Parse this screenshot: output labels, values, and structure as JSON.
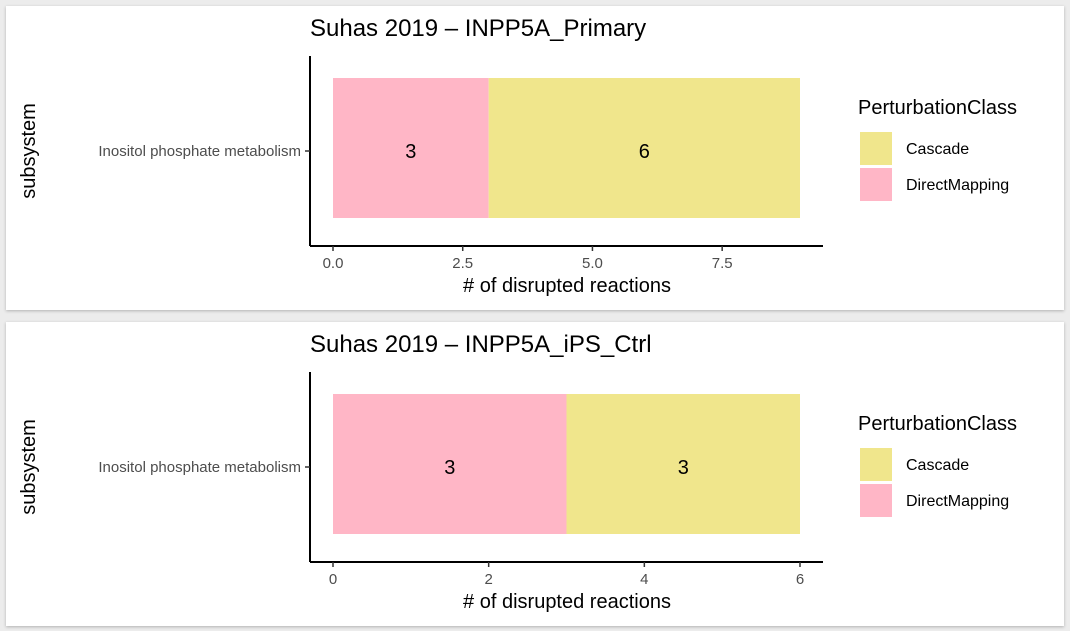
{
  "chart_data": [
    {
      "type": "bar",
      "orientation": "horizontal",
      "stacked": true,
      "title": "Suhas 2019 – INPP5A_Primary",
      "xlabel": "# of disrupted reactions",
      "ylabel": "subsystem",
      "categories": [
        "Inositol phosphate metabolism"
      ],
      "series": [
        {
          "name": "DirectMapping",
          "values": [
            3
          ],
          "color": "#FFB6C6"
        },
        {
          "name": "Cascade",
          "values": [
            6
          ],
          "color": "#F0E68C"
        }
      ],
      "xlim": [
        0,
        9
      ],
      "xticks": [
        0,
        2.5,
        5,
        7.5
      ],
      "xtick_labels": [
        "0.0",
        "2.5",
        "5.0",
        "7.5"
      ],
      "legend": {
        "title": "PerturbationClass",
        "position": "right",
        "entries": [
          "Cascade",
          "DirectMapping"
        ]
      },
      "grid": false
    },
    {
      "type": "bar",
      "orientation": "horizontal",
      "stacked": true,
      "title": "Suhas 2019 – INPP5A_iPS_Ctrl",
      "xlabel": "# of disrupted reactions",
      "ylabel": "subsystem",
      "categories": [
        "Inositol phosphate metabolism"
      ],
      "series": [
        {
          "name": "DirectMapping",
          "values": [
            3
          ],
          "color": "#FFB6C6"
        },
        {
          "name": "Cascade",
          "values": [
            3
          ],
          "color": "#F0E68C"
        }
      ],
      "xlim": [
        0,
        6
      ],
      "xticks": [
        0,
        2,
        4,
        6
      ],
      "xtick_labels": [
        "0",
        "2",
        "4",
        "6"
      ],
      "legend": {
        "title": "PerturbationClass",
        "position": "right",
        "entries": [
          "Cascade",
          "DirectMapping"
        ]
      },
      "grid": false
    }
  ]
}
